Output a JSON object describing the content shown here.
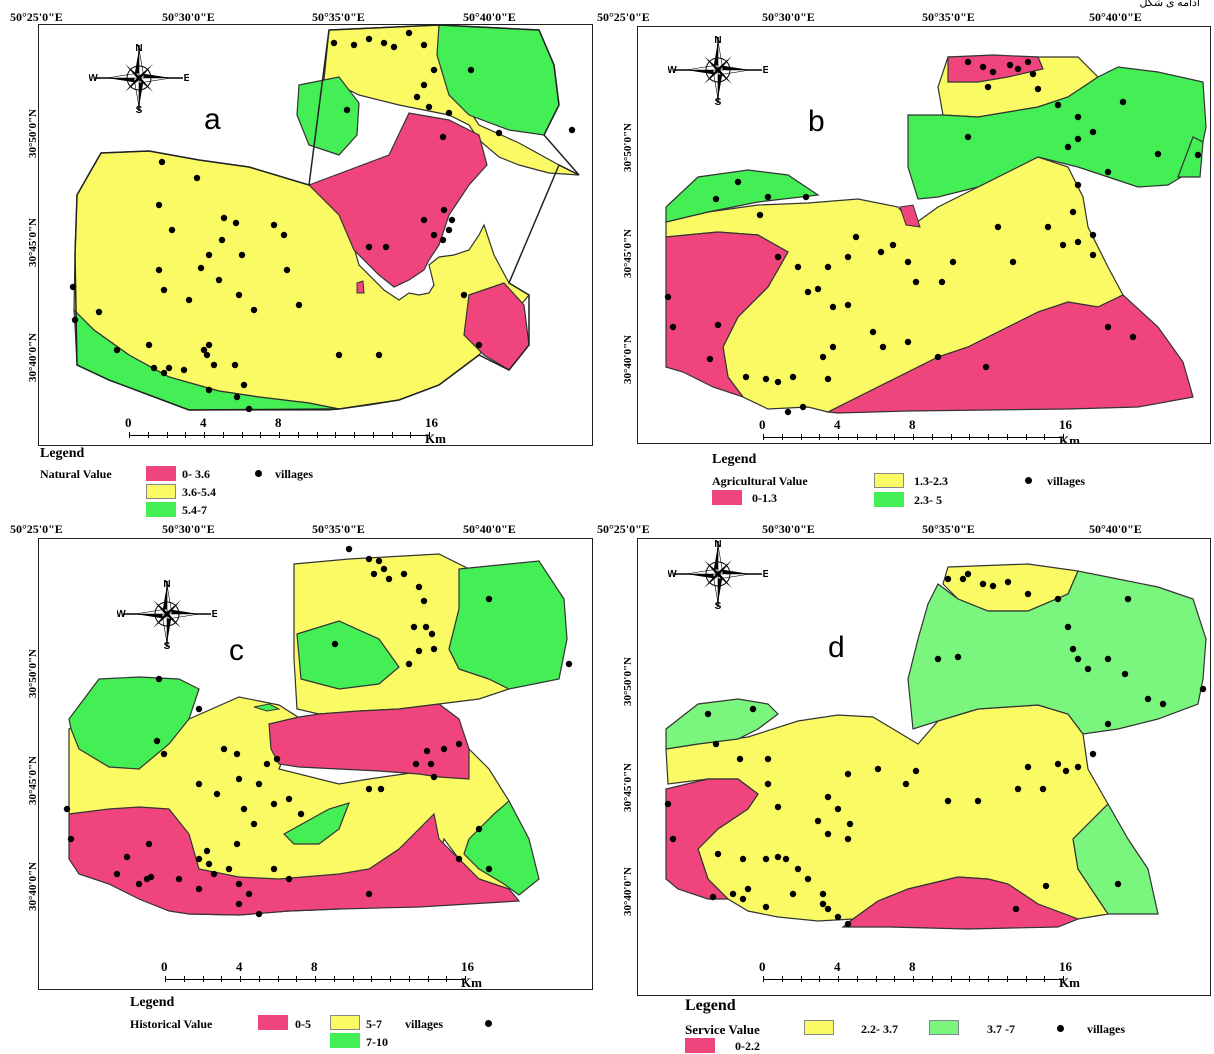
{
  "top_note": "ادامه ی شکل",
  "coords": {
    "lon": [
      "50°25'0\"E",
      "50°30'0\"E",
      "50°35'0\"E",
      "50°40'0\"E"
    ],
    "lat": [
      "30°50'0\"N",
      "30°45'0\"N",
      "30°40'0\"N"
    ]
  },
  "compass": {
    "n": "N",
    "s": "S",
    "e": "E",
    "w": "W"
  },
  "scale": {
    "labels": [
      "0",
      "4",
      "8",
      "16 Km"
    ]
  },
  "colors": {
    "red": "#f0457c",
    "yellow": "#fafa64",
    "green": "#44ee55",
    "light_green": "#7af57e",
    "village": "#000000"
  },
  "panels": [
    {
      "letter": "a",
      "legend": {
        "title": "Legend",
        "name": "Natural Value",
        "classes": [
          {
            "label": "0- 3.6",
            "color": "red"
          },
          {
            "label": "3.6-5.4",
            "color": "yellow"
          },
          {
            "label": "5.4-7",
            "color": "green"
          }
        ],
        "villages_label": "villages"
      }
    },
    {
      "letter": "b",
      "legend": {
        "title": "Legend",
        "name": "Agricultural Value",
        "classes": [
          {
            "label": "0-1.3",
            "color": "red"
          },
          {
            "label": "1.3-2.3",
            "color": "yellow"
          },
          {
            "label": "2.3- 5",
            "color": "green"
          }
        ],
        "villages_label": "villages"
      }
    },
    {
      "letter": "c",
      "legend": {
        "title": "Legend",
        "name": "Historical Value",
        "classes": [
          {
            "label": "0-5",
            "color": "red"
          },
          {
            "label": "5-7",
            "color": "yellow"
          },
          {
            "label": "7-10",
            "color": "green"
          }
        ],
        "villages_label": "villages"
      }
    },
    {
      "letter": "d",
      "legend": {
        "title": "Legend",
        "name": "Service Value",
        "classes": [
          {
            "label": "0-2.2",
            "color": "red"
          },
          {
            "label": "2.2- 3.7",
            "color": "yellow"
          },
          {
            "label": "3.7 -7",
            "color": "light_green"
          }
        ],
        "villages_label": "villages"
      }
    }
  ]
}
